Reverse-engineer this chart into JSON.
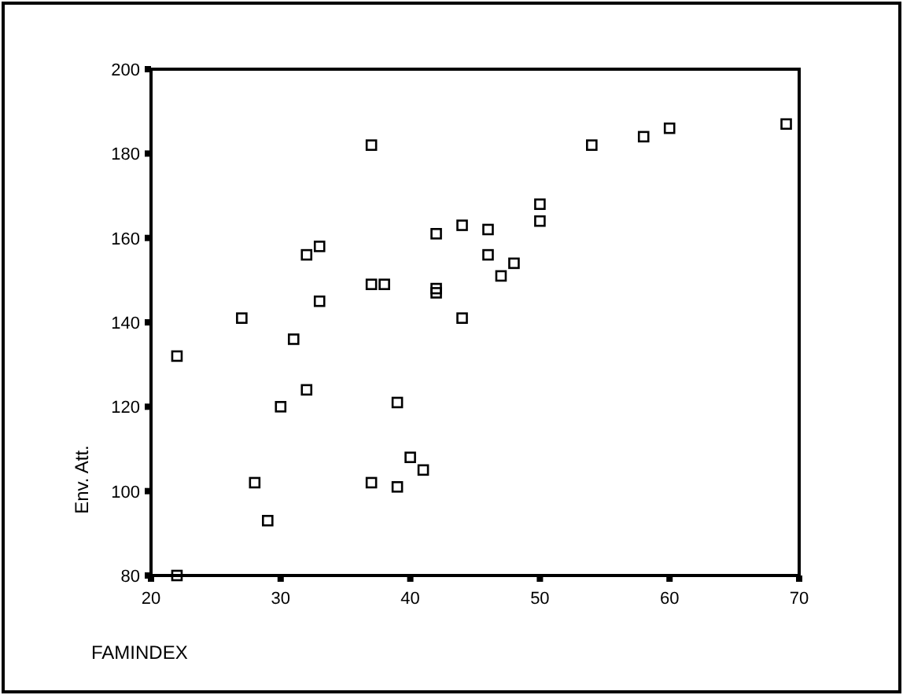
{
  "chart_data": {
    "type": "scatter",
    "xlabel": "FAMINDEX",
    "ylabel": "Env. Att.",
    "xlim": [
      20,
      70
    ],
    "ylim": [
      80,
      200
    ],
    "xticks": [
      20,
      30,
      40,
      50,
      60,
      70
    ],
    "yticks": [
      80,
      100,
      120,
      140,
      160,
      180,
      200
    ],
    "marker": "square",
    "series": [
      {
        "color": "#000000",
        "x": [
          22,
          22,
          27,
          28,
          29,
          30,
          31,
          32,
          32,
          33,
          33,
          37,
          37,
          38,
          37,
          39,
          39,
          40,
          41,
          42,
          42,
          42,
          44,
          44,
          46,
          46,
          47,
          48,
          50,
          50,
          54,
          58,
          60,
          69
        ],
        "values": [
          132,
          80,
          141,
          102,
          93,
          120,
          136,
          124,
          156,
          158,
          145,
          182,
          149,
          149,
          102,
          121,
          101,
          108,
          105,
          161,
          148,
          147,
          163,
          141,
          162,
          156,
          151,
          154,
          168,
          164,
          182,
          184,
          186,
          187
        ]
      }
    ]
  }
}
